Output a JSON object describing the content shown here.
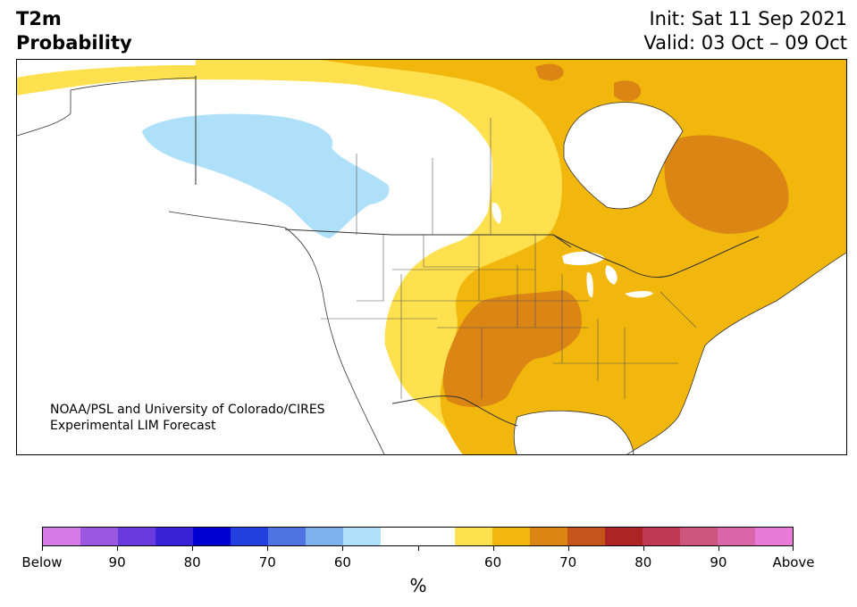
{
  "title": {
    "left_line1": "T2m",
    "left_line2": "Probability",
    "right_line1": "Init: Sat 11 Sep 2021",
    "right_line2": "Valid: 03 Oct – 09 Oct"
  },
  "map": {
    "region": "North America",
    "credit_line1": "NOAA/PSL and University of Colorado/CIRES",
    "credit_line2": "Experimental LIM Forecast",
    "colors": {
      "background": "#ffffff",
      "below_60": "#aee0fa",
      "above_60": "#ffe04e",
      "above_70": "#f2b70c",
      "above_80": "#db8514",
      "outline": "#333333"
    }
  },
  "colorbar": {
    "unit": "%",
    "tick_labels": [
      "Below",
      "90",
      "80",
      "70",
      "60",
      "",
      "60",
      "70",
      "80",
      "90",
      "Above"
    ],
    "colors": [
      "#d57ae6",
      "#9b57e0",
      "#6a3bdc",
      "#3a22d6",
      "#0000d0",
      "#2140de",
      "#4d74e2",
      "#7db1ed",
      "#aee0fa",
      "#ffffff",
      "#ffffff",
      "#ffe04e",
      "#f2b70c",
      "#db8514",
      "#c4541a",
      "#ae2323",
      "#c03a55",
      "#cc567d",
      "#d966a8",
      "#e97ad8"
    ]
  }
}
